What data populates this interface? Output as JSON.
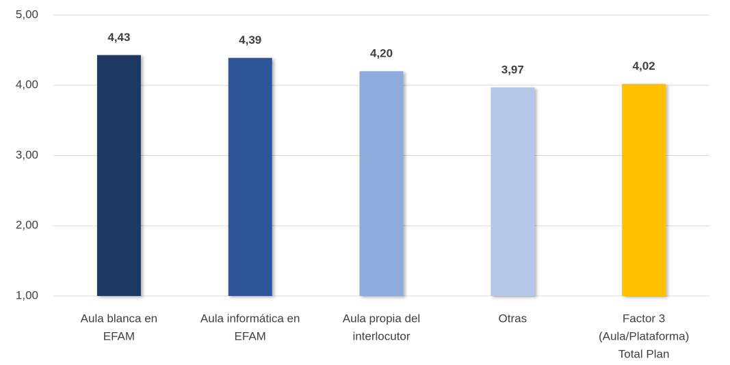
{
  "chart_data": {
    "type": "bar",
    "categories": [
      [
        "Aula blanca en",
        "EFAM"
      ],
      [
        "Aula informática en",
        "EFAM"
      ],
      [
        "Aula propia del",
        "interlocutor"
      ],
      [
        "Otras"
      ],
      [
        "Factor 3",
        "(Aula/Plataforma)",
        "Total Plan"
      ]
    ],
    "values": [
      4.43,
      4.39,
      4.2,
      3.97,
      4.02
    ],
    "value_labels": [
      "4,43",
      "4,39",
      "4,20",
      "3,97",
      "4,02"
    ],
    "colors": [
      "#1f3864",
      "#2f5597",
      "#8faadc",
      "#b4c7e7",
      "#ffc000"
    ],
    "ylim": [
      1,
      5
    ],
    "yticks": [
      {
        "value": 1,
        "label": "1,00"
      },
      {
        "value": 2,
        "label": "2,00"
      },
      {
        "value": 3,
        "label": "3,00"
      },
      {
        "value": 4,
        "label": "4,00"
      },
      {
        "value": 5,
        "label": "5,00"
      }
    ],
    "grid": true
  }
}
